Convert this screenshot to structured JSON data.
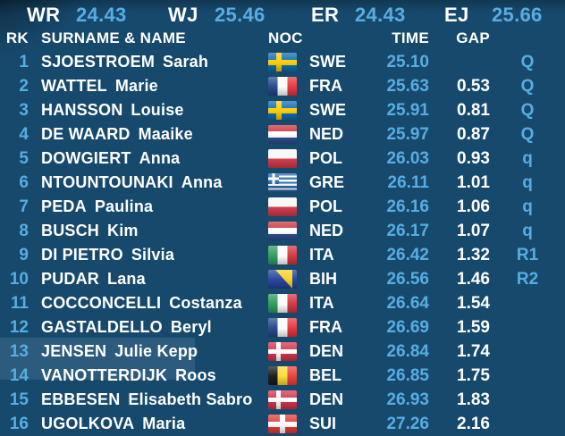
{
  "records": {
    "items": [
      {
        "label": "WR",
        "value": "24.43"
      },
      {
        "label": "WJ",
        "value": "25.46"
      },
      {
        "label": "ER",
        "value": "24.43"
      },
      {
        "label": "EJ",
        "value": "25.66"
      }
    ]
  },
  "columns": {
    "rank": "RK",
    "name": "SURNAME & NAME",
    "noc": "NOC",
    "time": "TIME",
    "gap": "GAP"
  },
  "colors": {
    "background": "#17496d",
    "accent_blue": "#57ade3",
    "text_white": "#ffffff"
  },
  "rows": [
    {
      "rank": "1",
      "surname": "SJOESTROEM",
      "given": "Sarah",
      "flag": "swe",
      "noc": "SWE",
      "time": "25.10",
      "gap": "",
      "qual": "Q"
    },
    {
      "rank": "2",
      "surname": "WATTEL",
      "given": "Marie",
      "flag": "fra",
      "noc": "FRA",
      "time": "25.63",
      "gap": "0.53",
      "qual": "Q"
    },
    {
      "rank": "3",
      "surname": "HANSSON",
      "given": "Louise",
      "flag": "swe",
      "noc": "SWE",
      "time": "25.91",
      "gap": "0.81",
      "qual": "Q"
    },
    {
      "rank": "4",
      "surname": "DE WAARD",
      "given": "Maaike",
      "flag": "ned",
      "noc": "NED",
      "time": "25.97",
      "gap": "0.87",
      "qual": "Q"
    },
    {
      "rank": "5",
      "surname": "DOWGIERT",
      "given": "Anna",
      "flag": "pol",
      "noc": "POL",
      "time": "26.03",
      "gap": "0.93",
      "qual": "q"
    },
    {
      "rank": "6",
      "surname": "NTOUNTOUNAKI",
      "given": "Anna",
      "flag": "gre",
      "noc": "GRE",
      "time": "26.11",
      "gap": "1.01",
      "qual": "q"
    },
    {
      "rank": "7",
      "surname": "PEDA",
      "given": "Paulina",
      "flag": "pol",
      "noc": "POL",
      "time": "26.16",
      "gap": "1.06",
      "qual": "q"
    },
    {
      "rank": "8",
      "surname": "BUSCH",
      "given": "Kim",
      "flag": "ned",
      "noc": "NED",
      "time": "26.17",
      "gap": "1.07",
      "qual": "q"
    },
    {
      "rank": "9",
      "surname": "DI PIETRO",
      "given": "Silvia",
      "flag": "ita",
      "noc": "ITA",
      "time": "26.42",
      "gap": "1.32",
      "qual": "R1"
    },
    {
      "rank": "10",
      "surname": "PUDAR",
      "given": "Lana",
      "flag": "bih",
      "noc": "BIH",
      "time": "26.56",
      "gap": "1.46",
      "qual": "R2"
    },
    {
      "rank": "11",
      "surname": "COCCONCELLI",
      "given": "Costanza",
      "flag": "ita",
      "noc": "ITA",
      "time": "26.64",
      "gap": "1.54",
      "qual": ""
    },
    {
      "rank": "12",
      "surname": "GASTALDELLO",
      "given": "Beryl",
      "flag": "fra",
      "noc": "FRA",
      "time": "26.69",
      "gap": "1.59",
      "qual": ""
    },
    {
      "rank": "13",
      "surname": "JENSEN",
      "given": "Julie Kepp",
      "flag": "den",
      "noc": "DEN",
      "time": "26.84",
      "gap": "1.74",
      "qual": ""
    },
    {
      "rank": "14",
      "surname": "VANOTTERDIJK",
      "given": "Roos",
      "flag": "bel",
      "noc": "BEL",
      "time": "26.85",
      "gap": "1.75",
      "qual": ""
    },
    {
      "rank": "15",
      "surname": "EBBESEN",
      "given": "Elisabeth Sabro",
      "flag": "den",
      "noc": "DEN",
      "time": "26.93",
      "gap": "1.83",
      "qual": ""
    },
    {
      "rank": "16",
      "surname": "UGOLKOVA",
      "given": "Maria",
      "flag": "sui",
      "noc": "SUI",
      "time": "27.26",
      "gap": "2.16",
      "qual": ""
    }
  ]
}
